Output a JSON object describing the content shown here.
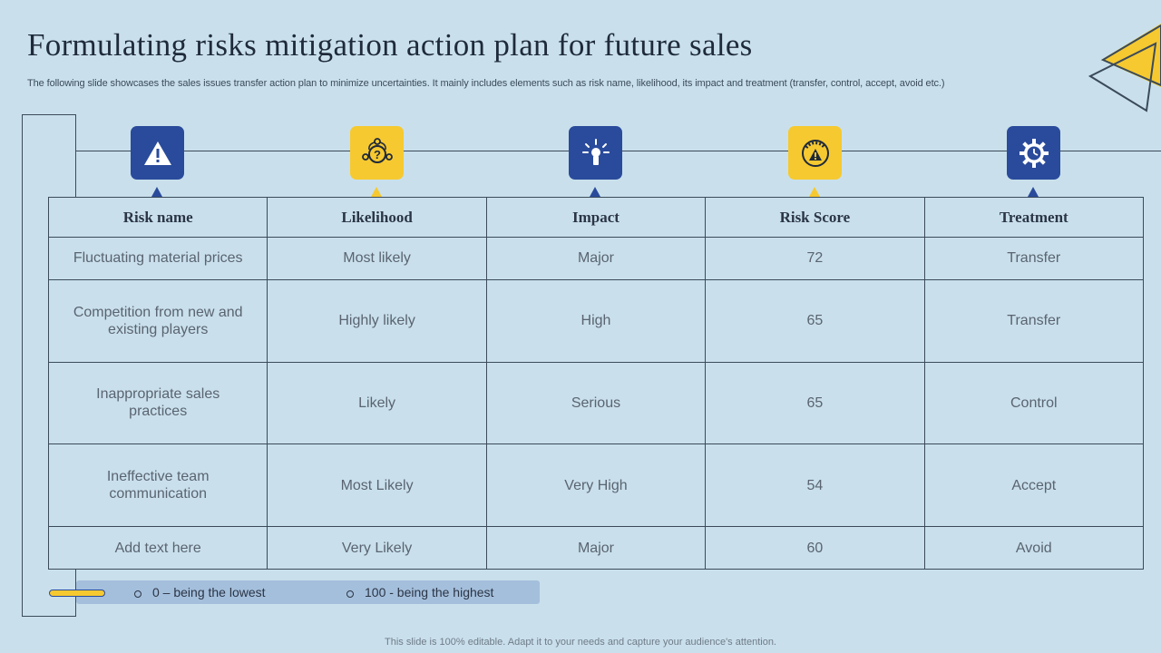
{
  "title": "Formulating risks mitigation action plan for future sales",
  "subtitle": "The following slide showcases the sales issues transfer action plan to minimize uncertainties. It mainly includes elements such as risk name, likelihood, its impact and treatment (transfer, control, accept, avoid etc.)",
  "colors": {
    "background": "#c9e0ec",
    "blue": "#2a4b9b",
    "yellow": "#f6c930",
    "line": "#3b4a5a"
  },
  "icons": [
    "warning-icon",
    "question-mindmap-icon",
    "lightbulb-burst-icon",
    "gauge-warning-icon",
    "gear-clock-icon"
  ],
  "table": {
    "headers": [
      "Risk name",
      "Likelihood",
      "Impact",
      "Risk Score",
      "Treatment"
    ],
    "rows": [
      [
        "Fluctuating material prices",
        "Most likely",
        "Major",
        "72",
        "Transfer"
      ],
      [
        "Competition from new and existing players",
        "Highly likely",
        "High",
        "65",
        "Transfer"
      ],
      [
        "Inappropriate sales practices",
        "Likely",
        "Serious",
        "65",
        "Control"
      ],
      [
        "Ineffective team communication",
        "Most Likely",
        "Very High",
        "54",
        "Accept"
      ],
      [
        "Add text here",
        "Very Likely",
        "Major",
        "60",
        "Avoid"
      ]
    ]
  },
  "legend": {
    "low": "0 – being the lowest",
    "high": "100 - being the highest"
  },
  "footer": "This slide is 100% editable. Adapt it to your needs and capture your audience's attention."
}
